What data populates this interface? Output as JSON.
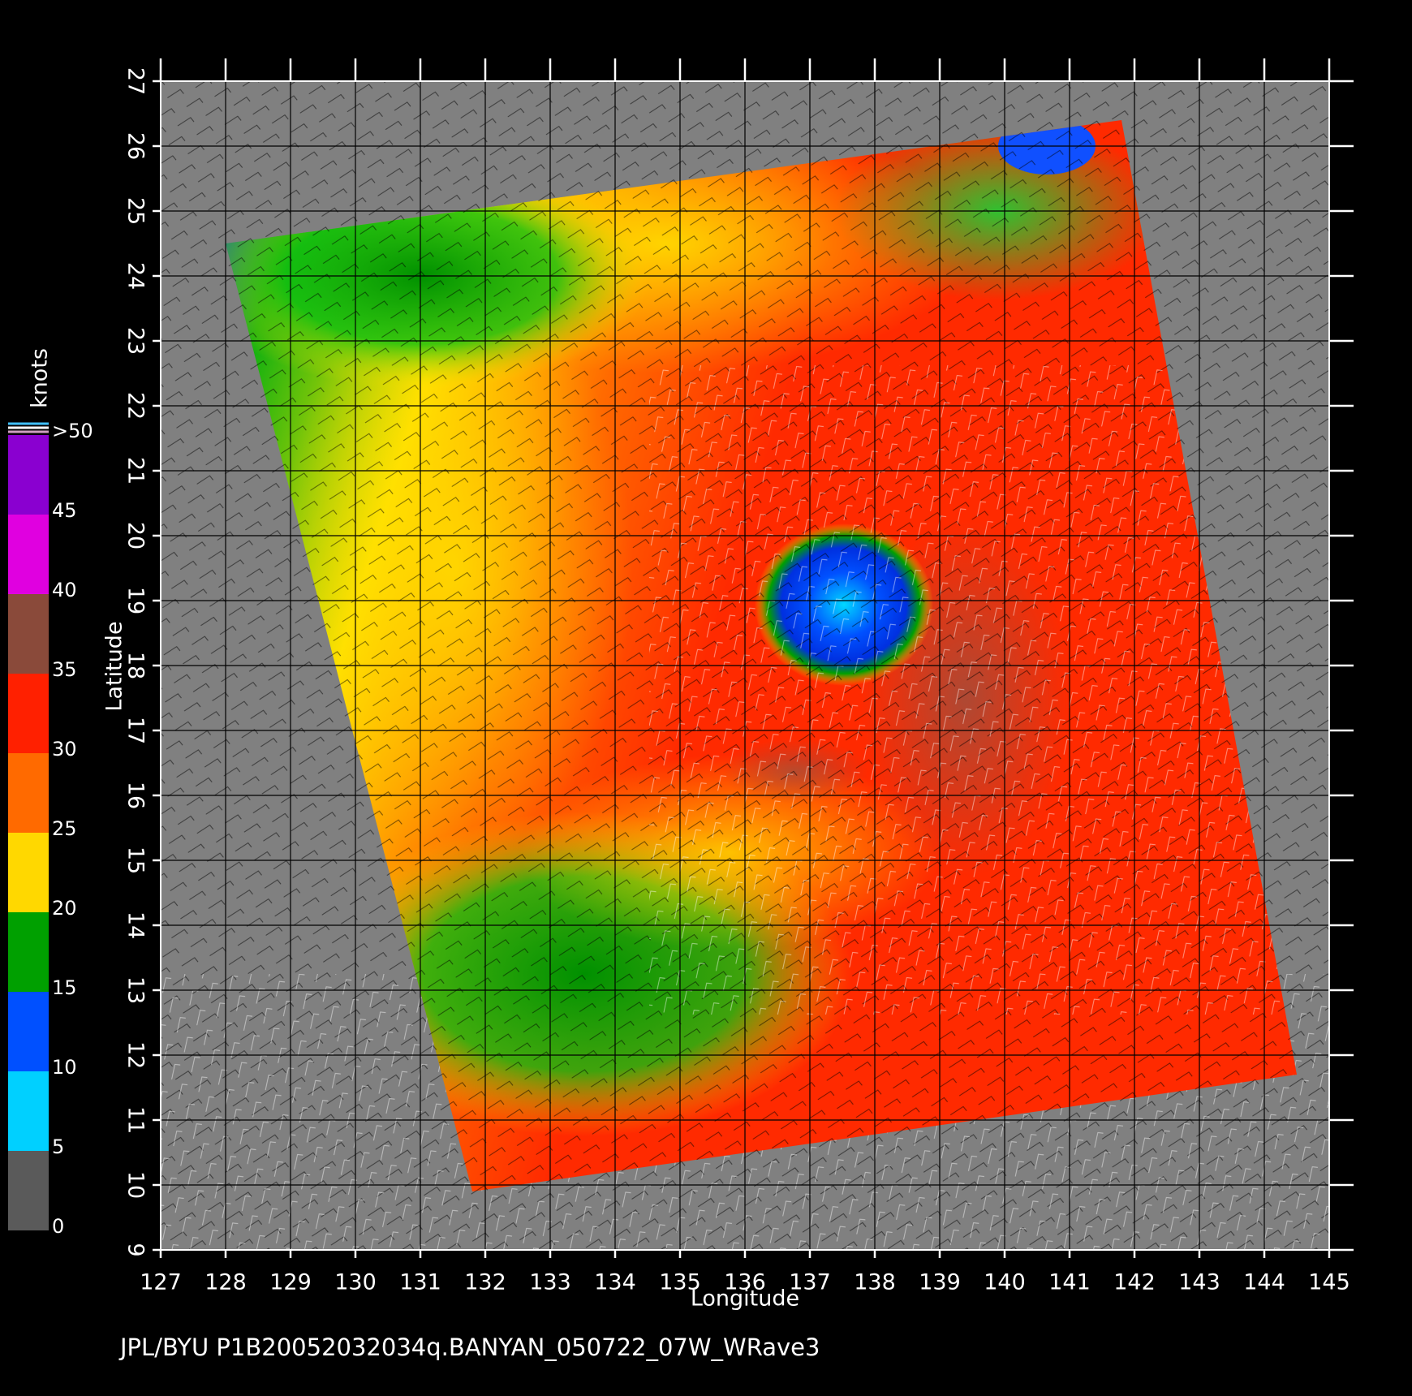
{
  "map": {
    "title": "JPL/BYU  P1B20052032034q.BANYAN_050722_07W_WRave3",
    "xlabel": "Longitude",
    "ylabel": "Latitude",
    "xlim": [
      127,
      145
    ],
    "xticks": [
      127,
      128,
      129,
      130,
      131,
      132,
      133,
      134,
      135,
      136,
      137,
      138,
      139,
      140,
      141,
      142,
      143,
      144,
      145
    ],
    "ylim": [
      9,
      27
    ],
    "yticks": [
      9,
      10,
      11,
      12,
      13,
      14,
      15,
      16,
      17,
      18,
      19,
      20,
      21,
      22,
      23,
      24,
      25,
      26,
      27
    ],
    "colorbar": {
      "label": "knots",
      "ticks": [
        0,
        5,
        10,
        15,
        20,
        25,
        30,
        35,
        40,
        45,
        {
          "value": 50,
          "label": ">50"
        }
      ],
      "colors": [
        "#5a5a5a",
        "#00d0ff",
        "#0050ff",
        "#00a000",
        "#ffd800",
        "#ff6a00",
        "#ff2000",
        "#8a4a3a",
        "#e000e0",
        "#8a00d0"
      ]
    }
  }
}
